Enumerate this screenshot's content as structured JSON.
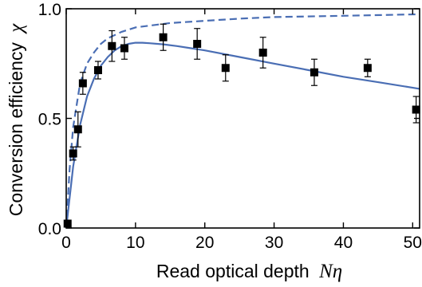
{
  "chart_data": {
    "type": "scatter",
    "xlabel": "Read optical depth",
    "xlabel_symbol": "Nη",
    "ylabel": "Conversion efficiency",
    "ylabel_symbol": "χ",
    "xlim": [
      0,
      51
    ],
    "ylim": [
      0,
      1.0
    ],
    "xticks": [
      0,
      10,
      20,
      30,
      40,
      50
    ],
    "yticks": [
      0.0,
      0.5,
      1.0
    ],
    "ytick_labels": [
      "0.0",
      "0.5",
      "1.0"
    ],
    "grid": false,
    "legend": "none",
    "series": [
      {
        "kind": "points-with-errorbars",
        "marker": "square",
        "color": "#000000",
        "x": [
          0.2,
          1.0,
          1.7,
          2.4,
          4.6,
          6.6,
          8.4,
          14.0,
          18.9,
          23.0,
          28.4,
          35.8,
          43.5,
          50.5
        ],
        "y": [
          0.02,
          0.34,
          0.45,
          0.66,
          0.72,
          0.83,
          0.82,
          0.87,
          0.84,
          0.73,
          0.8,
          0.71,
          0.73,
          0.54
        ],
        "err": [
          0.01,
          0.03,
          0.08,
          0.05,
          0.04,
          0.07,
          0.05,
          0.06,
          0.07,
          0.06,
          0.07,
          0.06,
          0.04,
          0.06
        ]
      },
      {
        "kind": "solid-curve",
        "color": "#4a6eb4",
        "x": [
          0,
          1,
          2,
          3,
          4,
          5,
          6,
          7,
          8,
          9,
          10,
          11,
          12,
          14,
          16,
          18,
          20,
          25,
          30,
          35,
          40,
          45,
          51
        ],
        "y": [
          0.0,
          0.28,
          0.47,
          0.6,
          0.68,
          0.74,
          0.78,
          0.81,
          0.83,
          0.84,
          0.845,
          0.845,
          0.843,
          0.838,
          0.83,
          0.82,
          0.81,
          0.78,
          0.75,
          0.72,
          0.69,
          0.665,
          0.635
        ]
      },
      {
        "kind": "dashed-curve",
        "color": "#4a6eb4",
        "x": [
          0,
          0.5,
          1,
          2,
          3,
          4,
          5,
          6,
          8,
          10,
          15,
          20,
          25,
          30,
          40,
          51
        ],
        "y": [
          0.0,
          0.27,
          0.46,
          0.66,
          0.75,
          0.8,
          0.84,
          0.865,
          0.895,
          0.915,
          0.935,
          0.945,
          0.955,
          0.962,
          0.968,
          0.975
        ]
      }
    ]
  }
}
